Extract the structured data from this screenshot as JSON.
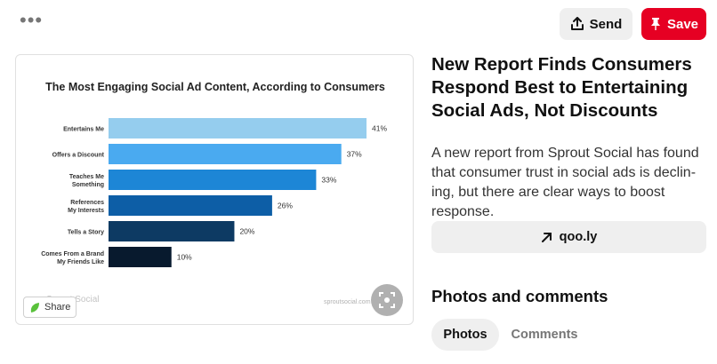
{
  "header": {
    "more_icon": "ellipsis-icon",
    "more_label": "•••",
    "send_label": "Send",
    "save_label": "Save",
    "save_color": "#e60023"
  },
  "pin": {
    "title": "New Report Finds Consumers Respond Best to Entertaining Social Ads, Not Discounts",
    "description": "A new report from Sprout Social has found that consumer trust in social ads is declin-ing, but there are clear ways to boost response.",
    "link_label": "qoo.ly",
    "share_label": "Share",
    "section_title": "Photos and comments",
    "tabs": [
      {
        "label": "Photos",
        "active": true
      },
      {
        "label": "Comments",
        "active": false
      }
    ]
  },
  "chart_data": {
    "type": "bar",
    "orientation": "horizontal",
    "title": "The Most Engaging Social Ad Content, According to Consumers",
    "categories": [
      [
        "Entertains Me"
      ],
      [
        "Offers a Discount"
      ],
      [
        "Teaches Me",
        "Something"
      ],
      [
        "References",
        "My Interests"
      ],
      [
        "Tells a Story"
      ],
      [
        "Comes From a Brand",
        "My Friends Like"
      ]
    ],
    "values": [
      41,
      37,
      33,
      26,
      20,
      10
    ],
    "value_labels": [
      "41%",
      "37%",
      "33%",
      "26%",
      "20%",
      "10%"
    ],
    "colors": [
      "#95cdee",
      "#4aaaf0",
      "#1d86d6",
      "#0d5ea6",
      "#0d3a63",
      "#081a2e"
    ],
    "xlim": [
      0,
      41
    ],
    "grid": false,
    "watermark_left": "Sprout Social",
    "watermark_right": "sproutsocial.com"
  }
}
